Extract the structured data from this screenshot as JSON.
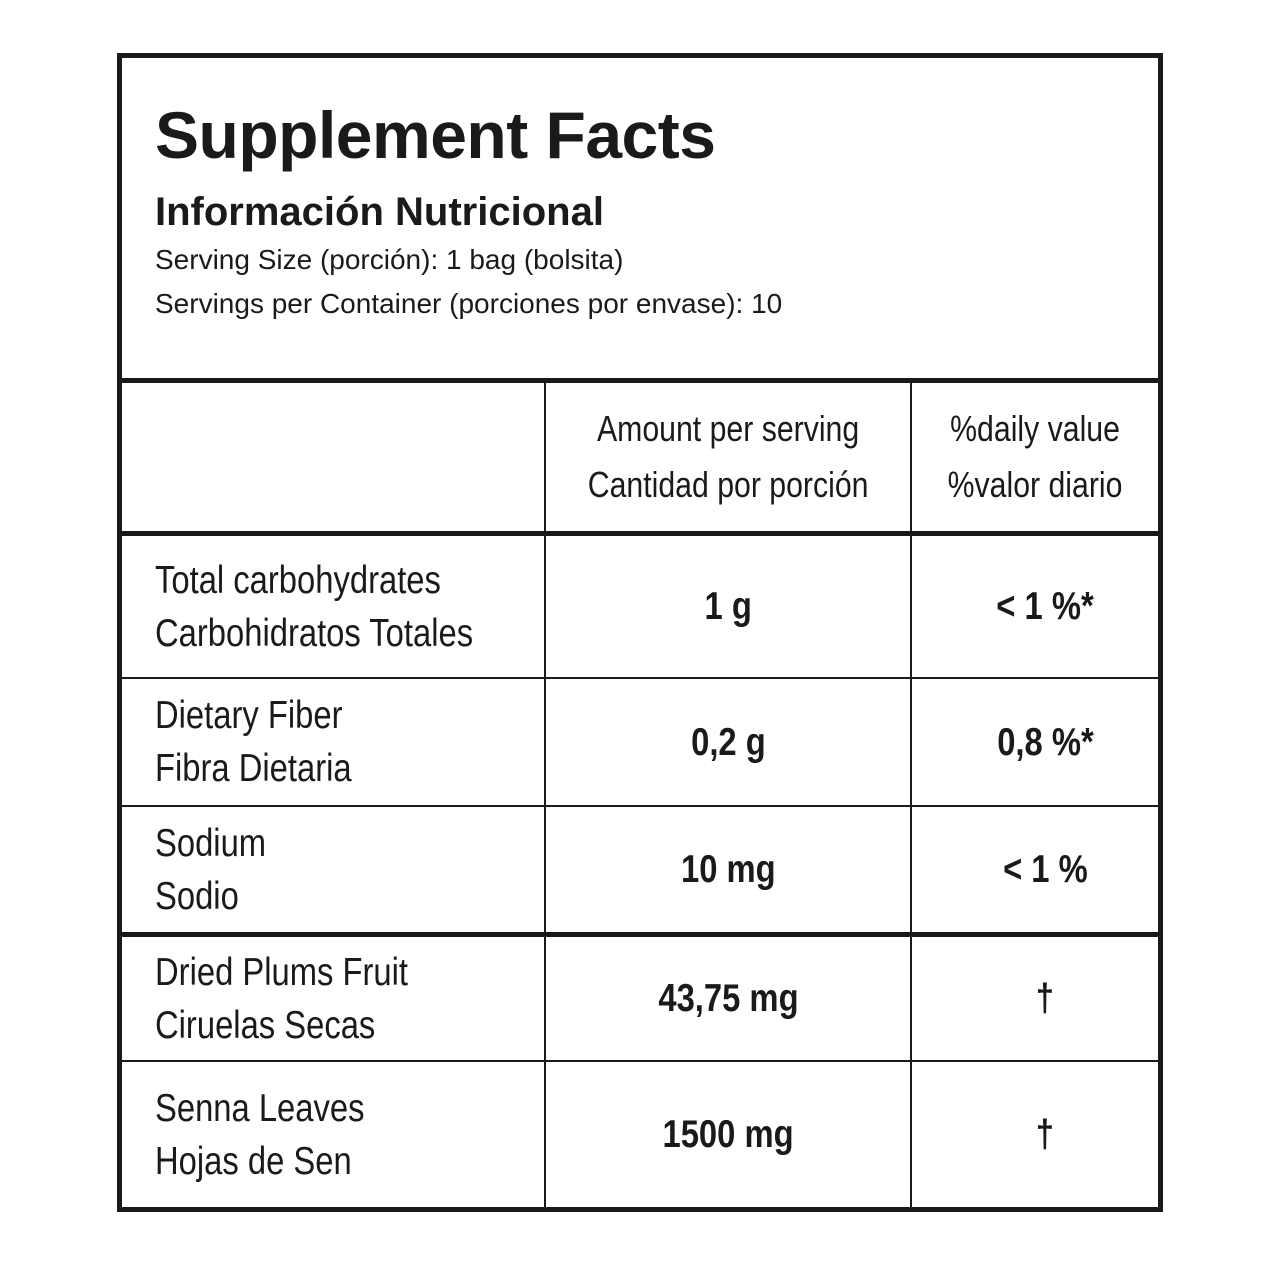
{
  "header": {
    "title": "Supplement Facts",
    "subtitle": "Información Nutricional",
    "serving_size": "Serving Size (porción): 1 bag (bolsita)",
    "servings_per_container": "Servings per Container (porciones por envase): 10"
  },
  "columns": {
    "amount": [
      "Amount per serving",
      "Cantidad por porción"
    ],
    "daily": [
      "%daily value",
      "%valor diario"
    ]
  },
  "rows": [
    {
      "name_en": "Total carbohydrates",
      "name_es": "Carbohidratos Totales",
      "amount": "1 g",
      "daily": "< 1 %*"
    },
    {
      "name_en": "Dietary Fiber",
      "name_es": "Fibra Dietaria",
      "amount": "0,2 g",
      "daily": "0,8 %*"
    },
    {
      "name_en": "Sodium",
      "name_es": "Sodio",
      "amount": "10 mg",
      "daily": "< 1 %"
    },
    {
      "name_en": "Dried Plums Fruit",
      "name_es": "Ciruelas Secas",
      "amount": "43,75 mg",
      "daily": "†"
    },
    {
      "name_en": "Senna Leaves",
      "name_es": "Hojas de Sen",
      "amount": "1500 mg",
      "daily": "†"
    }
  ]
}
